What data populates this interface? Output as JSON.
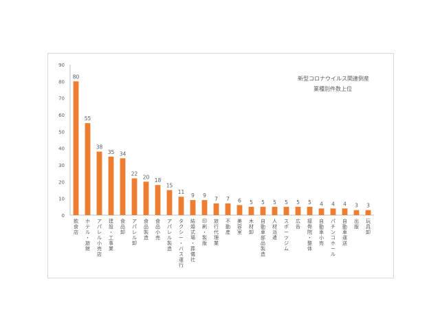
{
  "chart_data": {
    "type": "bar",
    "title": [
      "新型コロナウイルス関連倒産",
      "業種別件数上位"
    ],
    "xlabel": "",
    "ylabel": "",
    "ylim": [
      0,
      90
    ],
    "yticks": [
      0,
      10,
      20,
      30,
      40,
      50,
      60,
      70,
      80,
      90
    ],
    "grid": false,
    "legend": "none",
    "bar_color": "#ed7d31",
    "categories": [
      "飲食店",
      "ホテル・旅館",
      "アパレル小売店",
      "建設・工事業",
      "食品卸",
      "アパレル卸",
      "食品製造",
      "食品小売",
      "アパレル製造",
      "タクシー・バス運行",
      "結婚式場・葬儀社",
      "印刷・製版",
      "旅行代理業",
      "不動産",
      "美容室",
      "木材卸",
      "自動車部品製造",
      "人材派遣",
      "スポーツジム",
      "広告",
      "接骨院・整体",
      "自動車小売",
      "パチンコホール",
      "自動車運送",
      "出版",
      "玩具卸"
    ],
    "values": [
      80,
      55,
      38,
      35,
      34,
      22,
      20,
      18,
      15,
      11,
      9,
      9,
      7,
      7,
      6,
      5,
      5,
      5,
      5,
      5,
      5,
      4,
      4,
      4,
      3,
      3
    ]
  }
}
